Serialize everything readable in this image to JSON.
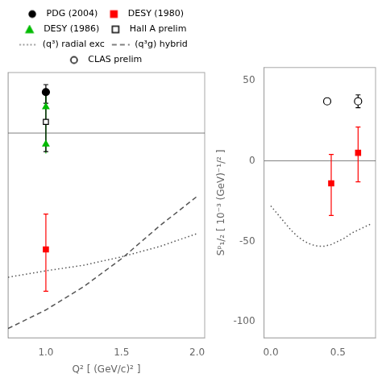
{
  "chart_data": [
    {
      "type": "scatter",
      "xlabel": "Q² [ (GeV/c)² ]",
      "xlim": [
        0.75,
        2.05
      ],
      "ylim": [
        -220,
        65
      ],
      "xticks": [
        {
          "value": 1.0,
          "label": "1.0"
        },
        {
          "value": 1.5,
          "label": "1.5"
        },
        {
          "value": 2.0,
          "label": "2.0"
        }
      ],
      "tick_labels": "x",
      "grid": false,
      "legend": "top",
      "hline": 0,
      "series": [
        {
          "name": "PDG (2004)",
          "type": "scatter",
          "color": "black",
          "marker": "circle",
          "x": [
            1.0
          ],
          "values": [
            44
          ],
          "yerr_lo": [
            12
          ],
          "yerr_hi": [
            8
          ]
        },
        {
          "name": "DESY (1980)",
          "type": "scatter",
          "color": "red",
          "marker": "square",
          "x": [
            1.0
          ],
          "values": [
            -125
          ],
          "yerr_lo": [
            45
          ],
          "yerr_hi": [
            38
          ]
        },
        {
          "name": "DESY (1986)",
          "type": "scatter",
          "color": "#00bb00",
          "marker": "triangle",
          "x": [
            1.0,
            1.0
          ],
          "values": [
            28,
            -12
          ],
          "span": {
            "x": 1.0,
            "low": -22,
            "high": 44
          }
        },
        {
          "name": "Hall A prelim",
          "type": "scatter",
          "color": "black",
          "marker": "open_square",
          "x": [
            1.0
          ],
          "values": [
            12
          ],
          "yerr_lo": [
            32
          ],
          "yerr_hi": [
            30
          ]
        },
        {
          "name": "(q³) radial exc",
          "type": "line",
          "color": "#555555",
          "line_style": "dotted",
          "x": [
            0.75,
            1.0,
            1.25,
            1.5,
            1.75,
            2.0
          ],
          "values": [
            -155,
            -148,
            -142,
            -133,
            -122,
            -108
          ]
        },
        {
          "name": "(q³g) hybrid",
          "type": "line",
          "color": "#555555",
          "line_style": "dashed",
          "x": [
            0.75,
            1.0,
            1.25,
            1.5,
            1.75,
            2.0
          ],
          "values": [
            -210,
            -190,
            -165,
            -135,
            -100,
            -68
          ]
        }
      ]
    },
    {
      "type": "scatter",
      "ylabel": "Sᵖ₁/₂ [ 10⁻³ (GeV)⁻¹/² ]",
      "xlim": [
        -0.05,
        0.78
      ],
      "ylim": [
        -110,
        58
      ],
      "xticks": [
        {
          "value": 0.0,
          "label": "0.0"
        },
        {
          "value": 0.5,
          "label": "0.5"
        }
      ],
      "yticks": [
        50,
        0,
        -50,
        -100
      ],
      "grid": false,
      "legend": false,
      "hline": 0,
      "series": [
        {
          "name": "CLAS prelim",
          "type": "scatter",
          "color": "black",
          "marker": "open_circle",
          "x": [
            0.42,
            0.65
          ],
          "values": [
            37,
            37
          ],
          "yerr_lo": [
            null,
            4
          ],
          "yerr_hi": [
            null,
            4
          ]
        },
        {
          "name": "DESY (1980)",
          "type": "scatter",
          "color": "red",
          "marker": "square",
          "x": [
            0.45,
            0.65
          ],
          "values": [
            -14,
            5
          ],
          "yerr_lo": [
            20,
            18
          ],
          "yerr_hi": [
            18,
            16
          ]
        },
        {
          "name": "(q³) radial exc",
          "type": "line",
          "color": "#555555",
          "line_style": "dotted",
          "x": [
            0.0,
            0.05,
            0.1,
            0.15,
            0.2,
            0.25,
            0.3,
            0.35,
            0.4,
            0.45,
            0.5,
            0.55,
            0.6,
            0.65,
            0.7,
            0.75
          ],
          "values": [
            -28,
            -33,
            -38,
            -43,
            -47,
            -50,
            -52,
            -53,
            -53,
            -52,
            -50,
            -48,
            -45,
            -43,
            -41,
            -39
          ]
        }
      ]
    }
  ]
}
